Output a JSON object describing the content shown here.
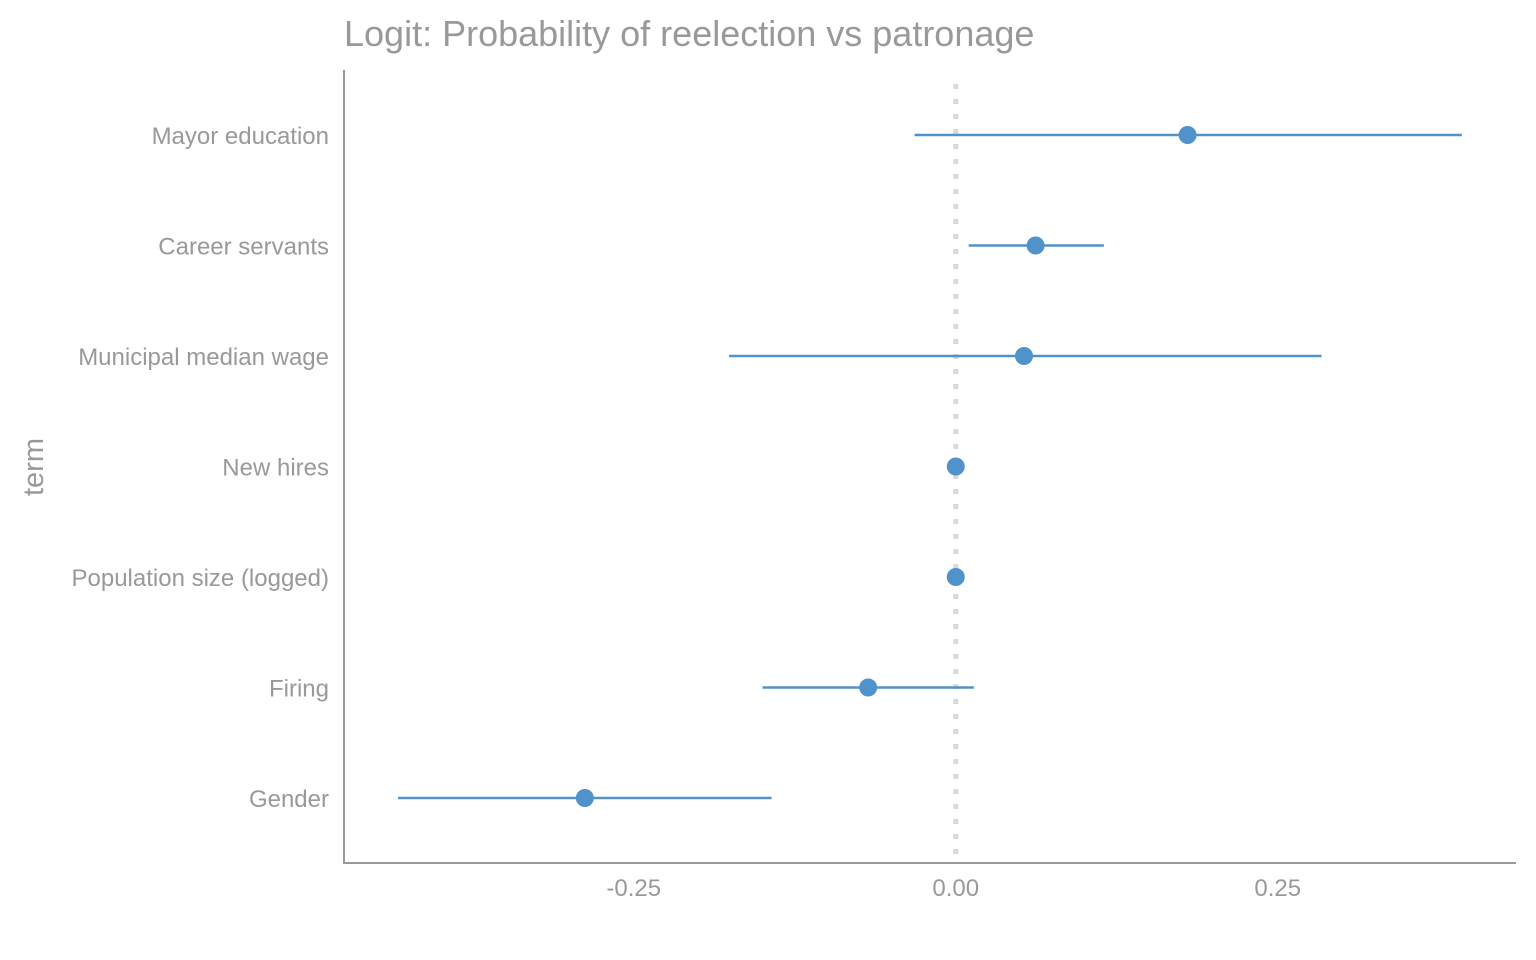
{
  "chart_data": {
    "type": "scatter",
    "title": "Logit: Probability of reelection vs patronage",
    "xlabel": "",
    "ylabel": "term",
    "xlim": [
      -0.475,
      0.435
    ],
    "x_ticks": [
      -0.25,
      0.0,
      0.25
    ],
    "x_tick_labels": [
      "-0.25",
      "0.00",
      "0.25"
    ],
    "reference_line": 0,
    "grid": false,
    "legend": "none",
    "point_color": "#5093cb",
    "reference_color": "#d9d9d9",
    "axis_color": "#999999",
    "terms": [
      {
        "label": "Mayor education",
        "estimate": 0.18,
        "low": -0.032,
        "high": 0.393
      },
      {
        "label": "Career servants",
        "estimate": 0.062,
        "low": 0.01,
        "high": 0.115
      },
      {
        "label": "Municipal median wage",
        "estimate": 0.053,
        "low": -0.176,
        "high": 0.284
      },
      {
        "label": "New hires",
        "estimate": 0.0,
        "low": 0.0,
        "high": 0.0
      },
      {
        "label": "Population size (logged)",
        "estimate": 0.0,
        "low": 0.0,
        "high": 0.0
      },
      {
        "label": "Firing",
        "estimate": -0.068,
        "low": -0.15,
        "high": 0.014
      },
      {
        "label": "Gender",
        "estimate": -0.288,
        "low": -0.433,
        "high": -0.143
      }
    ]
  }
}
